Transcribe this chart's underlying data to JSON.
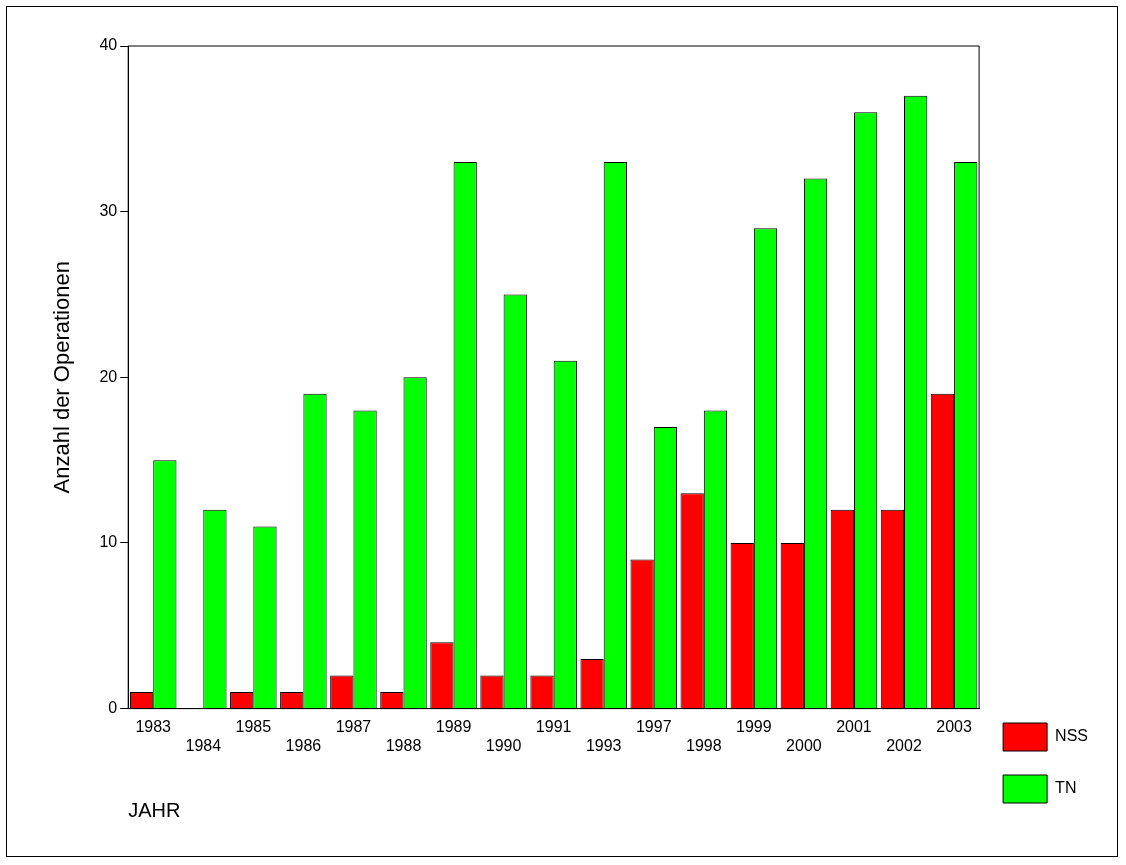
{
  "chart_data": {
    "type": "bar",
    "xlabel": "JAHR",
    "ylabel": "Anzahl der Operationen",
    "categories": [
      "1983",
      "1984",
      "1985",
      "1986",
      "1987",
      "1988",
      "1989",
      "1990",
      "1991",
      "1993",
      "1997",
      "1998",
      "1999",
      "2000",
      "2001",
      "2002",
      "2003"
    ],
    "series": [
      {
        "name": "NSS",
        "color": "#ff0000",
        "values": [
          1,
          0,
          1,
          1,
          2,
          1,
          4,
          2,
          2,
          3,
          9,
          13,
          10,
          10,
          12,
          12,
          19
        ]
      },
      {
        "name": "TN",
        "color": "#00ff00",
        "values": [
          15,
          12,
          11,
          19,
          18,
          20,
          33,
          25,
          21,
          33,
          17,
          18,
          29,
          32,
          36,
          37,
          33
        ]
      }
    ],
    "ylim": [
      0,
      40
    ],
    "yticks": [
      0,
      10,
      20,
      30,
      40
    ],
    "grid": false,
    "legend": "right"
  }
}
